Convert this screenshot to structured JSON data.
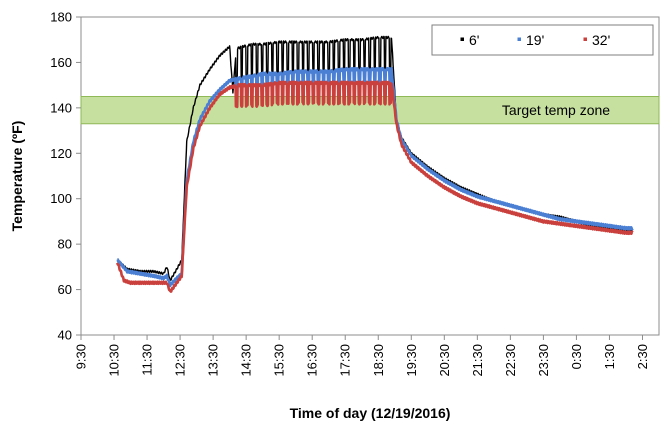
{
  "chart_data": {
    "type": "line",
    "xlabel": "Time of day (12/19/2016)",
    "ylabel": "Temperature (ºF)",
    "ylim": [
      40,
      180
    ],
    "yticks": [
      40,
      60,
      80,
      100,
      120,
      140,
      160,
      180
    ],
    "xlim_hours": [
      9.5,
      27.0
    ],
    "xtick_labels": [
      "9:30",
      "10:30",
      "11:30",
      "12:30",
      "13:30",
      "14:30",
      "15:30",
      "16:30",
      "17:30",
      "18:30",
      "19:30",
      "20:30",
      "21:30",
      "22:30",
      "23:30",
      "0:30",
      "1:30",
      "2:30"
    ],
    "xtick_hours": [
      9.5,
      10.5,
      11.5,
      12.5,
      13.5,
      14.5,
      15.5,
      16.5,
      17.5,
      18.5,
      19.5,
      20.5,
      21.5,
      22.5,
      23.5,
      24.5,
      25.5,
      26.5
    ],
    "grid": false,
    "legend_position": "top-right",
    "target_zone": {
      "label": "Target temp zone",
      "ymin": 133,
      "ymax": 145,
      "color": "#a8cf6c"
    },
    "series": [
      {
        "name": "6'",
        "color": "#000000",
        "x": [
          10.6,
          10.9,
          11.3,
          11.7,
          12.0,
          12.1,
          12.2,
          12.4,
          12.55,
          12.7,
          12.9,
          13.1,
          13.4,
          13.7,
          14.0,
          14.1,
          14.2,
          14.4,
          14.7,
          15.0,
          15.5,
          16.0,
          16.5,
          17.0,
          17.5,
          18.0,
          18.5,
          18.9,
          19.05,
          19.2,
          19.5,
          20.0,
          20.5,
          21.0,
          21.5,
          22.0,
          22.5,
          23.0,
          23.5,
          24.0,
          24.5,
          25.0,
          25.5,
          26.0,
          26.2
        ],
        "y": [
          73,
          69,
          68,
          68,
          67,
          70,
          64,
          69,
          73,
          125,
          140,
          150,
          157,
          163,
          167,
          147,
          166,
          167,
          168,
          168,
          169,
          169,
          169,
          169,
          170,
          170,
          171,
          171,
          135,
          127,
          120,
          114,
          109,
          105,
          102,
          99,
          97,
          95,
          93,
          92,
          90,
          88,
          87,
          86,
          86
        ],
        "oscillation": {
          "from": 14.1,
          "to": 18.95,
          "period": 0.155,
          "amplitude": 14
        }
      },
      {
        "name": "19'",
        "color": "#4a7fd4",
        "x": [
          10.6,
          10.9,
          11.3,
          11.7,
          12.0,
          12.1,
          12.2,
          12.4,
          12.55,
          12.7,
          12.9,
          13.1,
          13.4,
          13.7,
          14.0,
          14.3,
          14.7,
          15.0,
          15.5,
          16.0,
          16.5,
          17.0,
          17.5,
          18.0,
          18.5,
          18.9,
          19.05,
          19.2,
          19.5,
          20.0,
          20.5,
          21.0,
          21.5,
          22.0,
          22.5,
          23.0,
          23.5,
          24.0,
          24.5,
          25.0,
          25.5,
          26.0,
          26.2
        ],
        "y": [
          73,
          68,
          67,
          66,
          65,
          66,
          62,
          65,
          67,
          108,
          125,
          135,
          143,
          148,
          152,
          153,
          154,
          155,
          155,
          156,
          156,
          156,
          157,
          157,
          157,
          157,
          135,
          126,
          119,
          113,
          108,
          104,
          101,
          99,
          97,
          95,
          93,
          91,
          90,
          89,
          88,
          87,
          87
        ],
        "oscillation": {
          "from": 14.1,
          "to": 18.95,
          "period": 0.155,
          "amplitude": 5
        }
      },
      {
        "name": "32'",
        "color": "#c9403d",
        "x": [
          10.6,
          10.8,
          11.0,
          11.3,
          11.7,
          12.0,
          12.1,
          12.2,
          12.4,
          12.55,
          12.7,
          12.9,
          13.1,
          13.4,
          13.7,
          14.0,
          14.3,
          14.7,
          15.0,
          15.5,
          16.0,
          16.5,
          17.0,
          17.5,
          18.0,
          18.5,
          18.9,
          19.05,
          19.2,
          19.5,
          20.0,
          20.5,
          21.0,
          21.5,
          22.0,
          22.5,
          23.0,
          23.5,
          24.0,
          24.5,
          25.0,
          25.5,
          26.0,
          26.2
        ],
        "y": [
          72,
          64,
          63,
          63,
          63,
          63,
          63,
          59,
          63,
          66,
          105,
          122,
          132,
          140,
          146,
          149,
          150,
          150,
          150,
          151,
          151,
          151,
          151,
          151,
          151,
          151,
          151,
          133,
          124,
          116,
          110,
          105,
          101,
          98,
          96,
          94,
          92,
          90,
          89,
          88,
          87,
          86,
          85,
          85
        ],
        "oscillation": {
          "from": 14.1,
          "to": 18.95,
          "period": 0.155,
          "amplitude": 9
        }
      }
    ]
  }
}
